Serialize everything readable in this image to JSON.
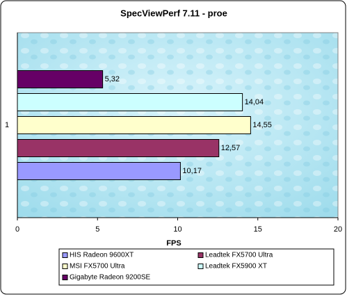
{
  "chart_data": {
    "type": "barh",
    "title": "SpecViewPerf 7.11 - proe",
    "xlabel": "FPS",
    "categories": [
      "1"
    ],
    "series": [
      {
        "name": "HIS Radeon 9600XT",
        "color": "#9999ff",
        "values": [
          10.17
        ],
        "value_labels": [
          "10,17"
        ]
      },
      {
        "name": "Leadtek FX5700 Ultra",
        "color": "#993366",
        "values": [
          12.57
        ],
        "value_labels": [
          "12,57"
        ]
      },
      {
        "name": "MSI FX5700 Ultra",
        "color": "#ffffcc",
        "values": [
          14.55
        ],
        "value_labels": [
          "14,55"
        ]
      },
      {
        "name": "Leadtek FX5900 XT",
        "color": "#ccffff",
        "values": [
          14.04
        ],
        "value_labels": [
          "14,04"
        ]
      },
      {
        "name": "Gigabyte Radeon 9200SE",
        "color": "#660066",
        "values": [
          5.32
        ],
        "value_labels": [
          "5,32"
        ]
      }
    ],
    "xlim": [
      0,
      20
    ],
    "xticks": [
      0,
      5,
      10,
      15,
      20
    ]
  }
}
